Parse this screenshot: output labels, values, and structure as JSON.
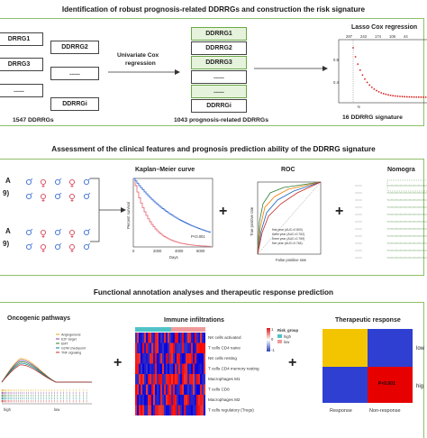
{
  "section1": {
    "title": "Identification of robust prognosis-related DDRRGs and construction the risk signature",
    "left_genes": [
      "DRRG1",
      "DRRG3",
      "......"
    ],
    "left_genes_b": [
      "DDRRG2",
      "......",
      "DDRRGi"
    ],
    "left_label": "1547 DDRRGs",
    "arrow_label_1": "Univariate Cox",
    "arrow_label_2": "regression",
    "mid_genes": [
      "DDRRG1",
      "DDRRG2",
      "DDRRG3",
      "......",
      "......",
      "DDRRGi"
    ],
    "mid_label": "1043 prognosis-related DDRRGs",
    "lasso_title": "Lasso Cox regression",
    "lasso_ticks": [
      "287",
      "243",
      "174",
      "106",
      "44"
    ],
    "lasso_yticks": [
      "0.8",
      "0.4"
    ],
    "lasso_xticks": [
      "-5"
    ],
    "lasso_label": "16 DDRRG signature"
  },
  "section2": {
    "title": "Assessment of the clinical features and prognosis prediction ability of the DDRRG signature",
    "left_labels_a": [
      "A",
      "9)"
    ],
    "left_labels_b": [
      "A",
      "9)"
    ],
    "km_title": "Kaplan–Meier curve",
    "km_ylabel": "Percent survival",
    "km_xlabel": "Days",
    "km_xticks": [
      "0",
      "2000",
      "4000",
      "6000"
    ],
    "km_pvalue": "P<0.001",
    "roc_title": "ROC",
    "roc_ylabel": "True positive rate",
    "roc_xlabel": "False positive rate",
    "roc_legend": [
      "first year (AUC=0.800)",
      "three year (AUC=0.762)",
      "three year (AUC=0.769)",
      "five year (AUC=0.764)"
    ],
    "nomogram_title": "Nomogra"
  },
  "section3": {
    "title": "Functional annotation analyses and therapeutic response prediction",
    "gsea_title": "Oncogenic pathways",
    "gsea_legend": [
      "Angiogenesis",
      "E2F target",
      "EMT",
      "G2/M checkpoint",
      "TNF signaling"
    ],
    "gsea_xlabels": [
      "high",
      "low"
    ],
    "immune_title": "Immune infiltrations",
    "immune_rows": [
      "NK cells activated",
      "T cells CD4 naive",
      "NK cells resting",
      "T cells CD4 memory resting",
      "Macrophages M1",
      "T cells CD8",
      "Macrophages M2",
      "T cells regulatory (Tregs)"
    ],
    "risk_group_title": "Risk_group",
    "risk_group_items": [
      "high",
      "low"
    ],
    "scale_ticks": [
      "1",
      "0",
      "-1"
    ],
    "ther_title": "Therapeutic response",
    "ther_row_labels": [
      "low",
      "hig"
    ],
    "ther_col_labels": [
      "Response",
      "Non-response"
    ],
    "ther_pvalue": "P<0.001"
  },
  "colors": {
    "accent_green": "#8fbf6a",
    "gene_box_fill": "#e6f3dc",
    "lasso_red": "#d81b1b",
    "km_high": "#e8727e",
    "km_low": "#3b6fd4",
    "heat_red": "#d7191c",
    "heat_blue": "#2c3fb3",
    "ther_yellow": "#f2c500",
    "ther_blue": "#2f3fd1",
    "ther_red": "#e60000"
  }
}
